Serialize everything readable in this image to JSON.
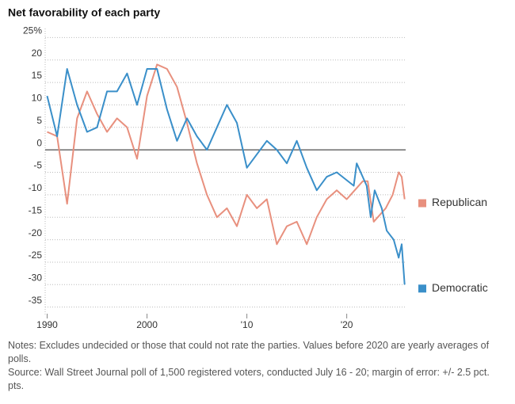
{
  "chart_data": {
    "type": "line",
    "title": "Net favorability of each party",
    "notes": "Notes: Excludes undecided or those that could not rate the parties. Values before 2020 are yearly averages of polls.",
    "source": "Source: Wall Street Journal poll of 1,500 registered voters, conducted July 16 - 20; margin of error: +/- 2.5 pct. pts.",
    "xlim": [
      1989.8,
      2025.9
    ],
    "xticks": [
      1990,
      2000,
      {
        "value": 2010,
        "label": "'10"
      },
      {
        "value": 2020,
        "label": "'20"
      }
    ],
    "ylim": [
      -37,
      27
    ],
    "yticks": [
      {
        "value": 25,
        "label": "25%"
      },
      20,
      15,
      10,
      5,
      0,
      -5,
      -10,
      -15,
      -20,
      -25,
      -30,
      -35
    ],
    "grid": true,
    "series": [
      {
        "name": "Republican",
        "color": "#e8907e",
        "x": [
          1990,
          1991,
          1992,
          1993,
          1994,
          1995,
          1996,
          1997,
          1998,
          1999,
          2000,
          2001,
          2002,
          2003,
          2004,
          2005,
          2006,
          2007,
          2008,
          2009,
          2010,
          2011,
          2012,
          2013,
          2014,
          2015,
          2016,
          2017,
          2018,
          2019,
          2020,
          2020.8,
          2021.6,
          2022.1,
          2022.7,
          2023.9,
          2024.6,
          2025.2,
          2025.5,
          2025.8
        ],
        "values": [
          4,
          3,
          -12,
          7,
          13,
          8,
          4,
          7,
          5,
          -2,
          12,
          19,
          18,
          14,
          6,
          -3,
          -10,
          -15,
          -13,
          -17,
          -10,
          -13,
          -11,
          -21,
          -17,
          -16,
          -21,
          -15,
          -11,
          -9,
          -11,
          -9,
          -7,
          -7,
          -16,
          -13,
          -10,
          -5,
          -6,
          -11
        ]
      },
      {
        "name": "Democratic",
        "color": "#3a8fc9",
        "x": [
          1990,
          1991,
          1992,
          1993,
          1994,
          1995,
          1996,
          1997,
          1998,
          1999,
          2000,
          2001,
          2002,
          2003,
          2004,
          2005,
          2006,
          2007,
          2008,
          2009,
          2010,
          2011,
          2012,
          2013,
          2014,
          2015,
          2016,
          2017,
          2018,
          2019,
          2020.7,
          2021,
          2022,
          2022.4,
          2022.8,
          2023.5,
          2024,
          2024.7,
          2025.2,
          2025.5,
          2025.8
        ],
        "values": [
          12,
          3,
          18,
          10,
          4,
          5,
          13,
          13,
          17,
          10,
          18,
          18,
          9,
          2,
          7,
          3,
          0,
          5,
          10,
          6,
          -4,
          -1,
          2,
          0,
          -3,
          2,
          -4,
          -9,
          -6,
          -5,
          -8,
          -3,
          -8,
          -15,
          -9,
          -13,
          -18,
          -20,
          -24,
          -21,
          -30
        ]
      }
    ]
  }
}
